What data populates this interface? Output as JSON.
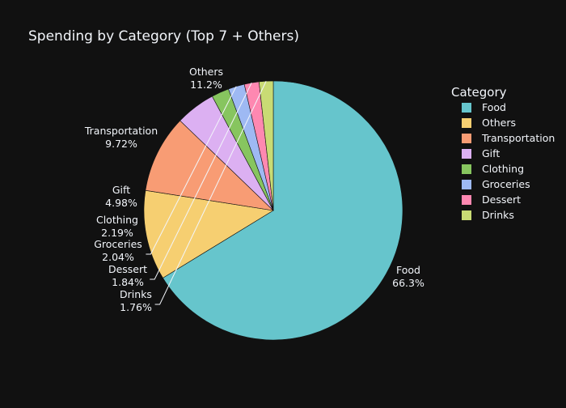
{
  "chart_data": {
    "type": "pie",
    "title": "Spending by Category (Top 7 + Others)",
    "legend_title": "Category",
    "legend_position": "right",
    "sort": "descending",
    "direction": "clockwise",
    "slices": [
      {
        "label": "Food",
        "percent": 66.3,
        "percent_label": "66.3%",
        "color": "#66c5cc"
      },
      {
        "label": "Others",
        "percent": 11.2,
        "percent_label": "11.2%",
        "color": "#f6cf71"
      },
      {
        "label": "Transportation",
        "percent": 9.72,
        "percent_label": "9.72%",
        "color": "#f89c74"
      },
      {
        "label": "Gift",
        "percent": 4.98,
        "percent_label": "4.98%",
        "color": "#dcb0f2"
      },
      {
        "label": "Clothing",
        "percent": 2.19,
        "percent_label": "2.19%",
        "color": "#87c55f"
      },
      {
        "label": "Groceries",
        "percent": 2.04,
        "percent_label": "2.04%",
        "color": "#9eb9f3"
      },
      {
        "label": "Dessert",
        "percent": 1.84,
        "percent_label": "1.84%",
        "color": "#fe88b1"
      },
      {
        "label": "Drinks",
        "percent": 1.76,
        "percent_label": "1.76%",
        "color": "#c9db74"
      }
    ],
    "legend_order": [
      "Food",
      "Others",
      "Transportation",
      "Gift",
      "Clothing",
      "Groceries",
      "Dessert",
      "Drinks"
    ]
  },
  "colors": {
    "background": "#111111",
    "text": "#f2f5fa",
    "slice_border": "#111111"
  }
}
